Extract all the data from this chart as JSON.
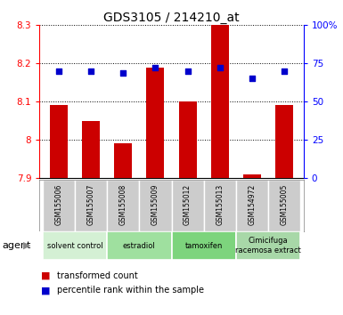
{
  "title": "GDS3105 / 214210_at",
  "samples": [
    "GSM155006",
    "GSM155007",
    "GSM155008",
    "GSM155009",
    "GSM155012",
    "GSM155013",
    "GSM154972",
    "GSM155005"
  ],
  "red_values": [
    8.09,
    8.05,
    7.99,
    8.19,
    8.1,
    8.3,
    7.91,
    8.09
  ],
  "blue_values": [
    70,
    70,
    69,
    72,
    70,
    72,
    65,
    70
  ],
  "ylim_left": [
    7.9,
    8.3
  ],
  "ylim_right": [
    0,
    100
  ],
  "yticks_left": [
    7.9,
    8.0,
    8.1,
    8.2,
    8.3
  ],
  "ytick_labels_left": [
    "7.9",
    "8",
    "8.1",
    "8.2",
    "8.3"
  ],
  "yticks_right": [
    0,
    25,
    50,
    75,
    100
  ],
  "ytick_labels_right": [
    "0",
    "25",
    "50",
    "75",
    "100%"
  ],
  "groups": [
    {
      "label": "solvent control",
      "samples": [
        "GSM155006",
        "GSM155007"
      ],
      "color": "#d4f0d4"
    },
    {
      "label": "estradiol",
      "samples": [
        "GSM155008",
        "GSM155009"
      ],
      "color": "#9fe09f"
    },
    {
      "label": "tamoxifen",
      "samples": [
        "GSM155012",
        "GSM155013"
      ],
      "color": "#7dd47d"
    },
    {
      "label": "Cimicifuga\nracemosa extract",
      "samples": [
        "GSM154972",
        "GSM155005"
      ],
      "color": "#a8d8a8"
    }
  ],
  "bar_color": "#cc0000",
  "dot_color": "#0000cc",
  "bar_bottom": 7.9,
  "bar_width": 0.55,
  "sample_box_color": "#cccccc",
  "agent_label": "agent",
  "legend_red": "transformed count",
  "legend_blue": "percentile rank within the sample"
}
